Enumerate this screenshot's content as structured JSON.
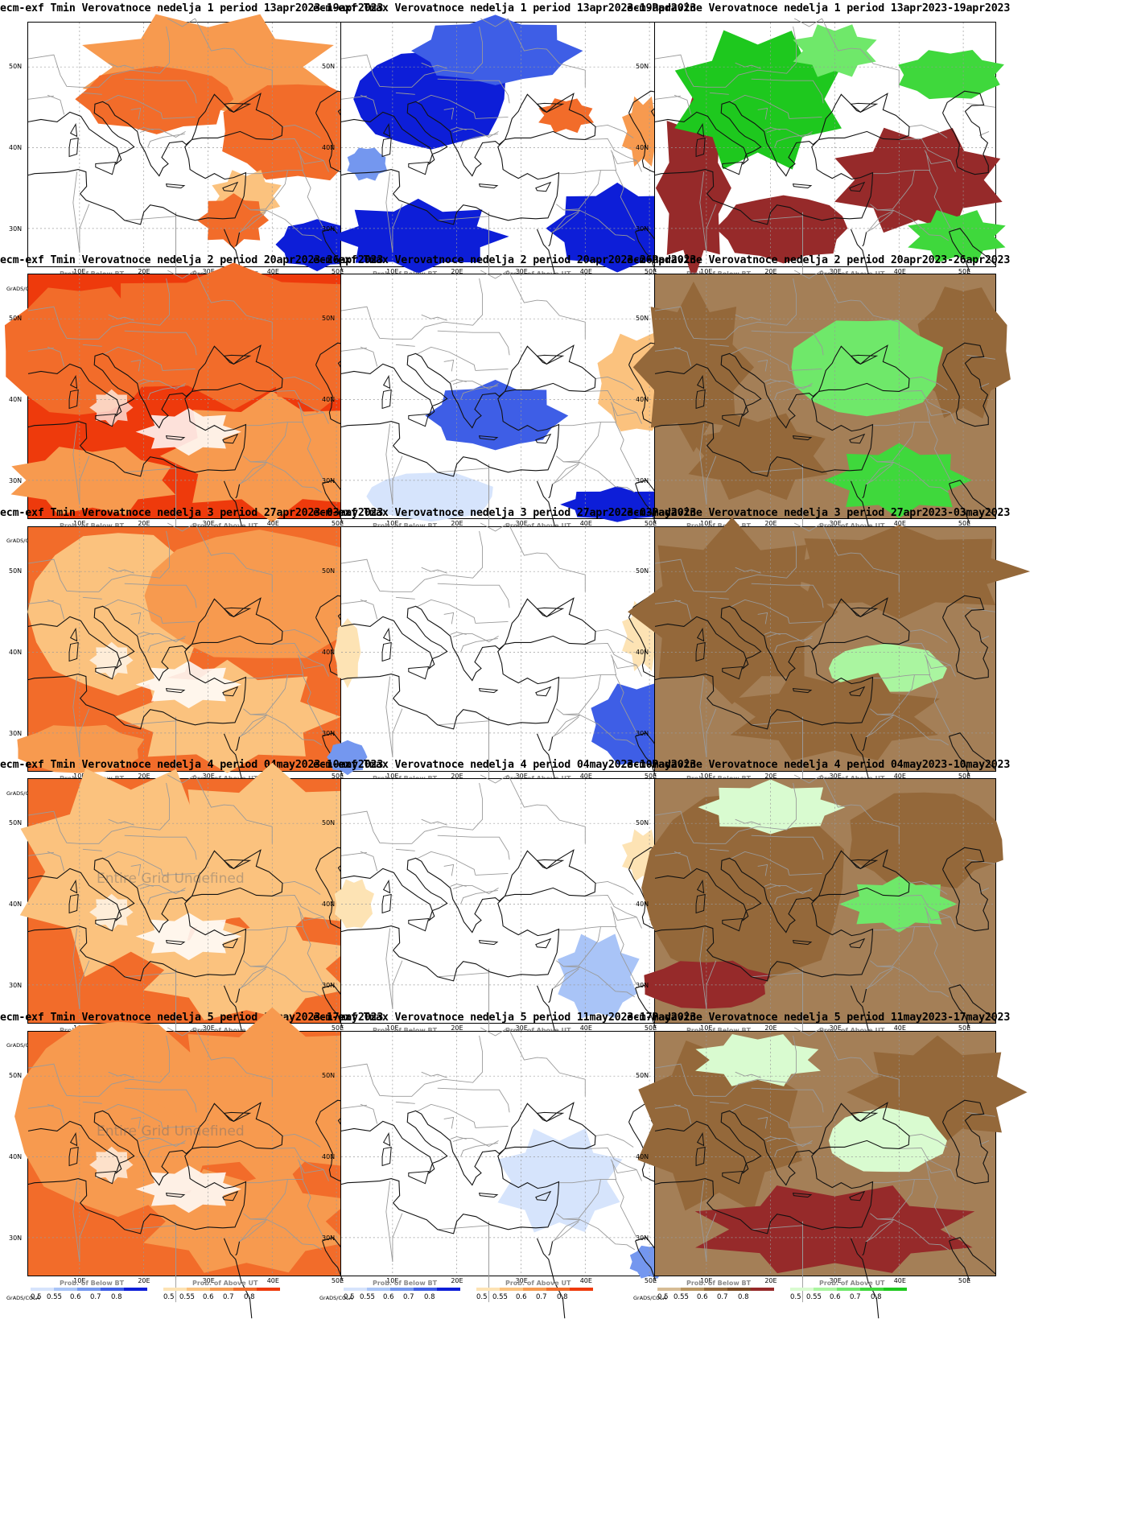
{
  "panels": [
    {
      "title": "ecm-exf Tmin Verovatnoce nedelja 1 period 13apr2023-19apr2023",
      "kind": "tmin",
      "week": 1
    },
    {
      "title": "ecm-exf Tmax Verovatnoce nedelja 1 period 13apr2023-19apr2023",
      "kind": "tmax",
      "week": 1
    },
    {
      "title": "ecm-Padavine Verovatnoce nedelja 1 period 13apr2023-19apr2023",
      "kind": "precip",
      "week": 1
    },
    {
      "title": "ecm-exf Tmin Verovatnoce nedelja 2 period 20apr2023-26apr2023",
      "kind": "tmin",
      "week": 2
    },
    {
      "title": "ecm-exf Tmax Verovatnoce nedelja 2 period 20apr2023-26apr2023",
      "kind": "tmax",
      "week": 2
    },
    {
      "title": "ecm-Padavine Verovatnoce nedelja 2 period 20apr2023-26apr2023",
      "kind": "precip",
      "week": 2
    },
    {
      "title": "ecm-exf Tmin Verovatnoce nedelja 3 period 27apr2023-03may2023",
      "kind": "tmin",
      "week": 3
    },
    {
      "title": "ecm-exf Tmax Verovatnoce nedelja 3 period 27apr2023-03may2023",
      "kind": "tmax",
      "week": 3
    },
    {
      "title": "ecm-Padavine Verovatnoce nedelja 3 period 27apr2023-03may2023",
      "kind": "precip",
      "week": 3
    },
    {
      "title": "ecm-exf Tmin Verovatnoce nedelja 4 period 04may2023-10may2023",
      "kind": "tmin",
      "week": 4,
      "overlay": "Entire Grid Undefined"
    },
    {
      "title": "ecm-exf Tmax Verovatnoce nedelja 4 period 04may2023-10may2023",
      "kind": "tmax",
      "week": 4
    },
    {
      "title": "ecm-Padavine Verovatnoce nedelja 4 period 04may2023-10may2023",
      "kind": "precip",
      "week": 4
    },
    {
      "title": "ecm-exf Tmin Verovatnoce nedelja 5 period 11may2023-17may2023",
      "kind": "tmin",
      "week": 5,
      "overlay": "Entire Grid Undefined"
    },
    {
      "title": "ecm-exf Tmax Verovatnoce nedelja 5 period 11may2023-17may2023",
      "kind": "tmax",
      "week": 5
    },
    {
      "title": "ecm-Padavine Verovatnoce nedelja 5 period 11may2023-17may2023",
      "kind": "precip",
      "week": 5
    }
  ],
  "axes": {
    "x_ticks": [
      "10E",
      "20E",
      "30E",
      "40E",
      "50E"
    ],
    "y_ticks": [
      "50N",
      "40N",
      "30N"
    ]
  },
  "legend": {
    "below_title": "Prob. of Below BT",
    "above_title": "Prob. of Above UT",
    "values": [
      "0.5",
      "0.55",
      "0.6",
      "0.7",
      "0.8"
    ],
    "credit": "GrADS/COLA"
  },
  "colors": {
    "temp_below": [
      "#d6e4fc",
      "#a9c4f7",
      "#7497ef",
      "#3e5ee6",
      "#0d1ed8"
    ],
    "temp_above": [
      "#fde3b4",
      "#fbc27e",
      "#f79a4f",
      "#f26c2a",
      "#ee3a0c"
    ],
    "precip_below": [
      "#d6bc94",
      "#b89460",
      "#94683a",
      "#7a4a22",
      "#962a2a"
    ],
    "precip_above": [
      "#d9fbd0",
      "#aaf5a0",
      "#6fe86a",
      "#3fd83c",
      "#1ec81e"
    ]
  }
}
